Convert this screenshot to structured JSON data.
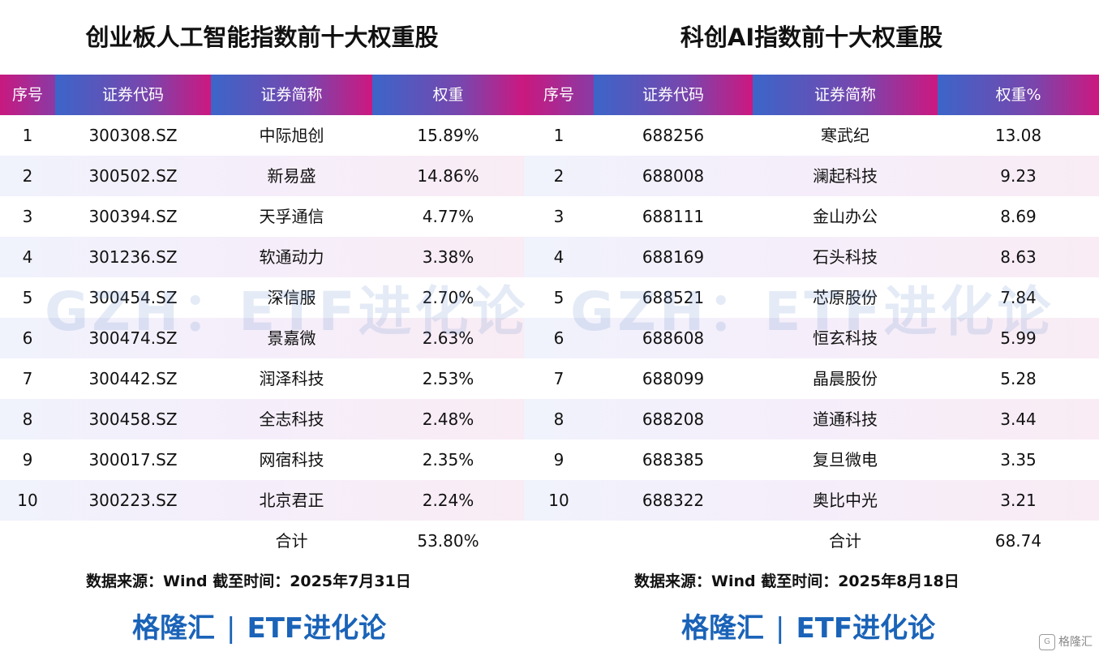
{
  "left": {
    "title": "创业板人工智能指数前十大权重股",
    "headers": [
      "序号",
      "证券代码",
      "证券简称",
      "权重"
    ],
    "rows": [
      [
        "1",
        "300308.SZ",
        "中际旭创",
        "15.89%"
      ],
      [
        "2",
        "300502.SZ",
        "新易盛",
        "14.86%"
      ],
      [
        "3",
        "300394.SZ",
        "天孚通信",
        "4.77%"
      ],
      [
        "4",
        "301236.SZ",
        "软通动力",
        "3.38%"
      ],
      [
        "5",
        "300454.SZ",
        "深信服",
        "2.70%"
      ],
      [
        "6",
        "300474.SZ",
        "景嘉微",
        "2.63%"
      ],
      [
        "7",
        "300442.SZ",
        "润泽科技",
        "2.53%"
      ],
      [
        "8",
        "300458.SZ",
        "全志科技",
        "2.48%"
      ],
      [
        "9",
        "300017.SZ",
        "网宿科技",
        "2.35%"
      ],
      [
        "10",
        "300223.SZ",
        "北京君正",
        "2.24%"
      ]
    ],
    "total_label": "合计",
    "total_value": "53.80%",
    "source": "数据来源：Wind 截至时间：2025年7月31日",
    "watermark": "GZH：ETF进化论",
    "brand_left": "格隆汇",
    "brand_sep": "|",
    "brand_right": "ETF进化论"
  },
  "right": {
    "title": "科创AI指数前十大权重股",
    "headers": [
      "序号",
      "证券代码",
      "证券简称",
      "权重%"
    ],
    "rows": [
      [
        "1",
        "688256",
        "寒武纪",
        "13.08"
      ],
      [
        "2",
        "688008",
        "澜起科技",
        "9.23"
      ],
      [
        "3",
        "688111",
        "金山办公",
        "8.69"
      ],
      [
        "4",
        "688169",
        "石头科技",
        "8.63"
      ],
      [
        "5",
        "688521",
        "芯原股份",
        "7.84"
      ],
      [
        "6",
        "688608",
        "恒玄科技",
        "5.99"
      ],
      [
        "7",
        "688099",
        "晶晨股份",
        "5.28"
      ],
      [
        "8",
        "688208",
        "道通科技",
        "3.44"
      ],
      [
        "9",
        "688385",
        "复旦微电",
        "3.35"
      ],
      [
        "10",
        "688322",
        "奥比中光",
        "3.21"
      ]
    ],
    "total_label": "合计",
    "total_value": "68.74",
    "source": "数据来源：Wind 截至时间：2025年8月18日",
    "watermark": "GZH：ETF进化论",
    "brand_left": "格隆汇",
    "brand_sep": "|",
    "brand_right": "ETF进化论"
  },
  "corner_logo": "格隆汇",
  "colors": {
    "header_pink": "#d3137f",
    "header_blue": "#3d63c8",
    "brand_blue": "#1a63b8"
  }
}
